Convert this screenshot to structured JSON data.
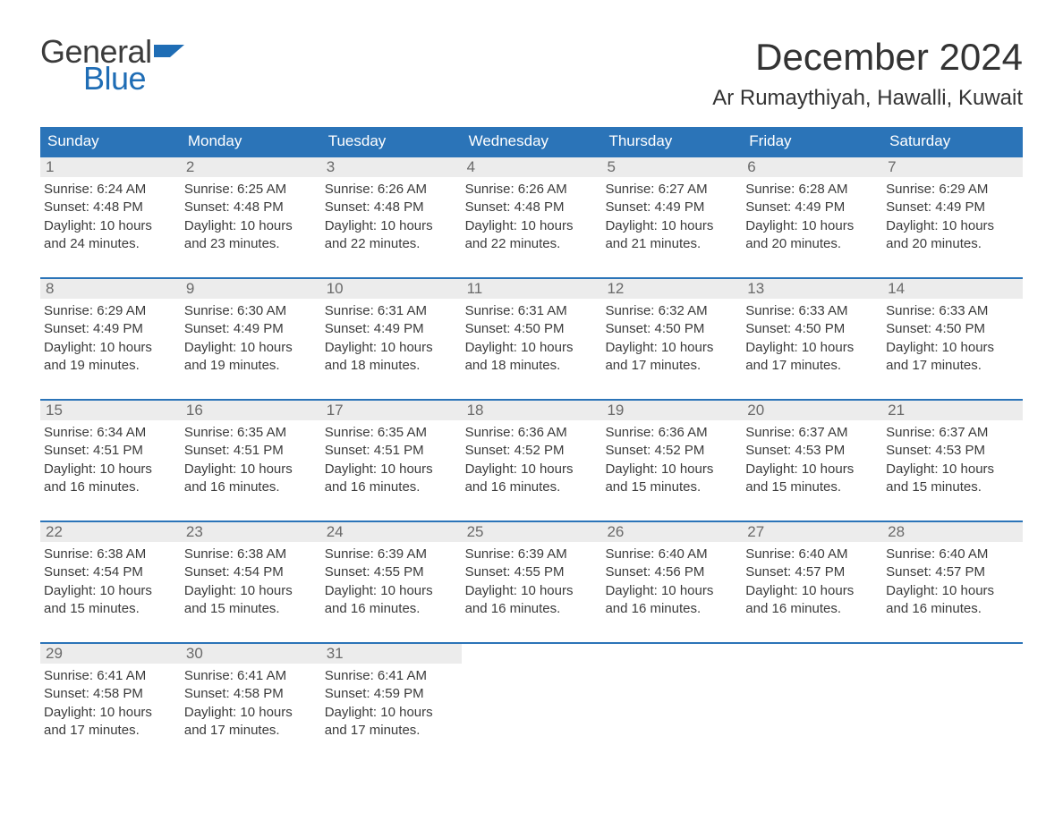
{
  "logo": {
    "general": "General",
    "blue": "Blue"
  },
  "title": "December 2024",
  "location": "Ar Rumaythiyah, Hawalli, Kuwait",
  "colors": {
    "header_bg": "#2b74b8",
    "header_text": "#ffffff",
    "daynum_bg": "#ececec",
    "daynum_text": "#6a6a6a",
    "body_text": "#3b3b3b",
    "logo_blue": "#1f6db5",
    "week_border": "#2b74b8"
  },
  "typography": {
    "title_fontsize": 42,
    "location_fontsize": 24,
    "dayhead_fontsize": 17,
    "daynum_fontsize": 17,
    "body_fontsize": 15
  },
  "day_headers": [
    "Sunday",
    "Monday",
    "Tuesday",
    "Wednesday",
    "Thursday",
    "Friday",
    "Saturday"
  ],
  "weeks": [
    [
      {
        "n": "1",
        "sr": "Sunrise: 6:24 AM",
        "ss": "Sunset: 4:48 PM",
        "d1": "Daylight: 10 hours",
        "d2": "and 24 minutes."
      },
      {
        "n": "2",
        "sr": "Sunrise: 6:25 AM",
        "ss": "Sunset: 4:48 PM",
        "d1": "Daylight: 10 hours",
        "d2": "and 23 minutes."
      },
      {
        "n": "3",
        "sr": "Sunrise: 6:26 AM",
        "ss": "Sunset: 4:48 PM",
        "d1": "Daylight: 10 hours",
        "d2": "and 22 minutes."
      },
      {
        "n": "4",
        "sr": "Sunrise: 6:26 AM",
        "ss": "Sunset: 4:48 PM",
        "d1": "Daylight: 10 hours",
        "d2": "and 22 minutes."
      },
      {
        "n": "5",
        "sr": "Sunrise: 6:27 AM",
        "ss": "Sunset: 4:49 PM",
        "d1": "Daylight: 10 hours",
        "d2": "and 21 minutes."
      },
      {
        "n": "6",
        "sr": "Sunrise: 6:28 AM",
        "ss": "Sunset: 4:49 PM",
        "d1": "Daylight: 10 hours",
        "d2": "and 20 minutes."
      },
      {
        "n": "7",
        "sr": "Sunrise: 6:29 AM",
        "ss": "Sunset: 4:49 PM",
        "d1": "Daylight: 10 hours",
        "d2": "and 20 minutes."
      }
    ],
    [
      {
        "n": "8",
        "sr": "Sunrise: 6:29 AM",
        "ss": "Sunset: 4:49 PM",
        "d1": "Daylight: 10 hours",
        "d2": "and 19 minutes."
      },
      {
        "n": "9",
        "sr": "Sunrise: 6:30 AM",
        "ss": "Sunset: 4:49 PM",
        "d1": "Daylight: 10 hours",
        "d2": "and 19 minutes."
      },
      {
        "n": "10",
        "sr": "Sunrise: 6:31 AM",
        "ss": "Sunset: 4:49 PM",
        "d1": "Daylight: 10 hours",
        "d2": "and 18 minutes."
      },
      {
        "n": "11",
        "sr": "Sunrise: 6:31 AM",
        "ss": "Sunset: 4:50 PM",
        "d1": "Daylight: 10 hours",
        "d2": "and 18 minutes."
      },
      {
        "n": "12",
        "sr": "Sunrise: 6:32 AM",
        "ss": "Sunset: 4:50 PM",
        "d1": "Daylight: 10 hours",
        "d2": "and 17 minutes."
      },
      {
        "n": "13",
        "sr": "Sunrise: 6:33 AM",
        "ss": "Sunset: 4:50 PM",
        "d1": "Daylight: 10 hours",
        "d2": "and 17 minutes."
      },
      {
        "n": "14",
        "sr": "Sunrise: 6:33 AM",
        "ss": "Sunset: 4:50 PM",
        "d1": "Daylight: 10 hours",
        "d2": "and 17 minutes."
      }
    ],
    [
      {
        "n": "15",
        "sr": "Sunrise: 6:34 AM",
        "ss": "Sunset: 4:51 PM",
        "d1": "Daylight: 10 hours",
        "d2": "and 16 minutes."
      },
      {
        "n": "16",
        "sr": "Sunrise: 6:35 AM",
        "ss": "Sunset: 4:51 PM",
        "d1": "Daylight: 10 hours",
        "d2": "and 16 minutes."
      },
      {
        "n": "17",
        "sr": "Sunrise: 6:35 AM",
        "ss": "Sunset: 4:51 PM",
        "d1": "Daylight: 10 hours",
        "d2": "and 16 minutes."
      },
      {
        "n": "18",
        "sr": "Sunrise: 6:36 AM",
        "ss": "Sunset: 4:52 PM",
        "d1": "Daylight: 10 hours",
        "d2": "and 16 minutes."
      },
      {
        "n": "19",
        "sr": "Sunrise: 6:36 AM",
        "ss": "Sunset: 4:52 PM",
        "d1": "Daylight: 10 hours",
        "d2": "and 15 minutes."
      },
      {
        "n": "20",
        "sr": "Sunrise: 6:37 AM",
        "ss": "Sunset: 4:53 PM",
        "d1": "Daylight: 10 hours",
        "d2": "and 15 minutes."
      },
      {
        "n": "21",
        "sr": "Sunrise: 6:37 AM",
        "ss": "Sunset: 4:53 PM",
        "d1": "Daylight: 10 hours",
        "d2": "and 15 minutes."
      }
    ],
    [
      {
        "n": "22",
        "sr": "Sunrise: 6:38 AM",
        "ss": "Sunset: 4:54 PM",
        "d1": "Daylight: 10 hours",
        "d2": "and 15 minutes."
      },
      {
        "n": "23",
        "sr": "Sunrise: 6:38 AM",
        "ss": "Sunset: 4:54 PM",
        "d1": "Daylight: 10 hours",
        "d2": "and 15 minutes."
      },
      {
        "n": "24",
        "sr": "Sunrise: 6:39 AM",
        "ss": "Sunset: 4:55 PM",
        "d1": "Daylight: 10 hours",
        "d2": "and 16 minutes."
      },
      {
        "n": "25",
        "sr": "Sunrise: 6:39 AM",
        "ss": "Sunset: 4:55 PM",
        "d1": "Daylight: 10 hours",
        "d2": "and 16 minutes."
      },
      {
        "n": "26",
        "sr": "Sunrise: 6:40 AM",
        "ss": "Sunset: 4:56 PM",
        "d1": "Daylight: 10 hours",
        "d2": "and 16 minutes."
      },
      {
        "n": "27",
        "sr": "Sunrise: 6:40 AM",
        "ss": "Sunset: 4:57 PM",
        "d1": "Daylight: 10 hours",
        "d2": "and 16 minutes."
      },
      {
        "n": "28",
        "sr": "Sunrise: 6:40 AM",
        "ss": "Sunset: 4:57 PM",
        "d1": "Daylight: 10 hours",
        "d2": "and 16 minutes."
      }
    ],
    [
      {
        "n": "29",
        "sr": "Sunrise: 6:41 AM",
        "ss": "Sunset: 4:58 PM",
        "d1": "Daylight: 10 hours",
        "d2": "and 17 minutes."
      },
      {
        "n": "30",
        "sr": "Sunrise: 6:41 AM",
        "ss": "Sunset: 4:58 PM",
        "d1": "Daylight: 10 hours",
        "d2": "and 17 minutes."
      },
      {
        "n": "31",
        "sr": "Sunrise: 6:41 AM",
        "ss": "Sunset: 4:59 PM",
        "d1": "Daylight: 10 hours",
        "d2": "and 17 minutes."
      },
      {
        "empty": true
      },
      {
        "empty": true
      },
      {
        "empty": true
      },
      {
        "empty": true
      }
    ]
  ]
}
